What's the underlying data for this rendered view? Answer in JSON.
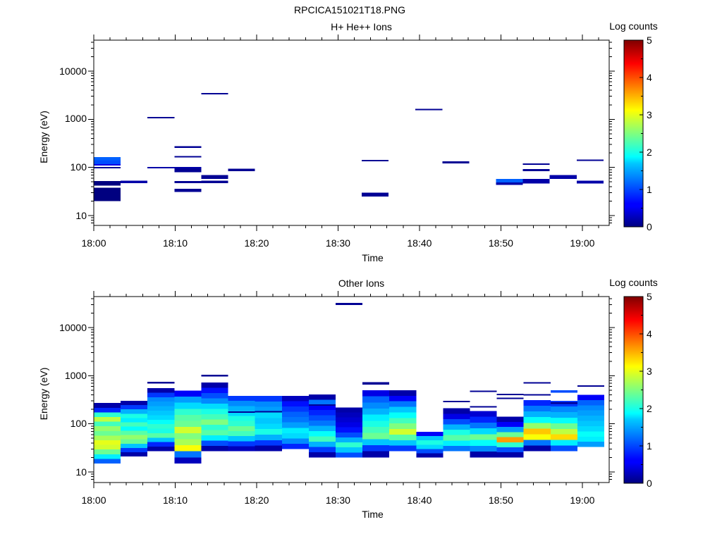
{
  "figure_title": "RPCICA151021T18.PNG",
  "chart_data": [
    {
      "type": "heatmap",
      "title": "H+ He++ Ions",
      "xlabel": "Time",
      "ylabel": "Energy (eV)",
      "x_ticks": [
        "18:00",
        "18:10",
        "18:20",
        "18:30",
        "18:40",
        "18:50",
        "19:00"
      ],
      "y_ticks": [
        "10",
        "100",
        "1000",
        "10000"
      ],
      "y_scale": "log",
      "ylim": [
        6,
        45000
      ],
      "xlim_minutes": [
        0,
        63.3
      ],
      "colorbar": {
        "label": "Log counts",
        "range": [
          0,
          5
        ],
        "ticks": [
          "0",
          "1",
          "2",
          "3",
          "4",
          "5"
        ]
      },
      "cells": [
        [
          0,
          3.3,
          20,
          33,
          0
        ],
        [
          0,
          3.3,
          33,
          38,
          0
        ],
        [
          0,
          3.3,
          42,
          52,
          0
        ],
        [
          0,
          3.3,
          95,
          103,
          0.1
        ],
        [
          0,
          3.3,
          112,
          118,
          0.5
        ],
        [
          0,
          3.3,
          118,
          140,
          1.0
        ],
        [
          0,
          3.3,
          140,
          165,
          1.1
        ],
        [
          3.3,
          6.6,
          47,
          53,
          0.2
        ],
        [
          6.6,
          9.9,
          98,
          103,
          0.2
        ],
        [
          6.6,
          9.9,
          1060,
          1120,
          0.1
        ],
        [
          9.9,
          13.2,
          31,
          36,
          0.1
        ],
        [
          9.9,
          13.2,
          47,
          52,
          0.1
        ],
        [
          9.9,
          13.2,
          80,
          97,
          0.1
        ],
        [
          9.9,
          13.2,
          97,
          103,
          0.2
        ],
        [
          9.9,
          13.2,
          168,
          172,
          0.1
        ],
        [
          9.9,
          13.2,
          255,
          275,
          0.1
        ],
        [
          13.2,
          16.5,
          47,
          53,
          0.1
        ],
        [
          13.2,
          16.5,
          58,
          70,
          0.1
        ],
        [
          13.2,
          16.5,
          3300,
          3500,
          0.1
        ],
        [
          16.5,
          19.8,
          84,
          94,
          0.1
        ],
        [
          32.9,
          36.2,
          25,
          30,
          0.1
        ],
        [
          32.9,
          36.2,
          137,
          144,
          0.1
        ],
        [
          39.5,
          42.8,
          1580,
          1650,
          0.1
        ],
        [
          42.8,
          46.1,
          122,
          134,
          0.1
        ],
        [
          49.4,
          52.7,
          43,
          49,
          0.2
        ],
        [
          49.4,
          52.7,
          49,
          58,
          1.1
        ],
        [
          52.7,
          56.0,
          46,
          58,
          0.2
        ],
        [
          52.7,
          56.0,
          83,
          93,
          0.1
        ],
        [
          52.7,
          56.0,
          114,
          121,
          0.1
        ],
        [
          56.0,
          59.3,
          58,
          70,
          0.2
        ],
        [
          59.3,
          62.6,
          46,
          53,
          0.2
        ],
        [
          59.3,
          62.6,
          137,
          145,
          0.1
        ]
      ]
    },
    {
      "type": "heatmap",
      "title": "Other Ions",
      "xlabel": "Time",
      "ylabel": "Energy (eV)",
      "x_ticks": [
        "18:00",
        "18:10",
        "18:20",
        "18:30",
        "18:40",
        "18:50",
        "19:00"
      ],
      "y_ticks": [
        "10",
        "100",
        "1000",
        "10000"
      ],
      "y_scale": "log",
      "ylim": [
        6,
        45000
      ],
      "xlim_minutes": [
        0,
        63.3
      ],
      "colorbar": {
        "label": "Log counts",
        "range": [
          0,
          5
        ],
        "ticks": [
          "0",
          "1",
          "2",
          "3",
          "4",
          "5"
        ]
      },
      "columns": [
        {
          "x": [
            0,
            3.3
          ],
          "lo": 15,
          "hi": 270,
          "colors": [
            1.1,
            1.8,
            2.4,
            2.9,
            3.0,
            2.7,
            2.4,
            2.6,
            2.2,
            2.8,
            2.1,
            0.8,
            0.2
          ]
        },
        {
          "x": [
            3.3,
            6.6
          ],
          "lo": 21,
          "hi": 300,
          "colors": [
            0.2,
            0.9,
            1.6,
            2.4,
            2.6,
            2.3,
            1.9,
            2.2,
            1.8,
            2.0,
            1.5,
            0.9,
            0.2
          ]
        },
        {
          "x": [
            6.6,
            9.9
          ],
          "lo": 27,
          "hi": 550,
          "colors": [
            0.2,
            0.8,
            1.6,
            2.3,
            2.0,
            2.1,
            1.9,
            1.7,
            1.6,
            1.5,
            1.4,
            1.3,
            0.9,
            0.2
          ]
        },
        {
          "x": [
            9.9,
            13.2
          ],
          "lo": 15,
          "hi": 490,
          "colors": [
            0.3,
            1.2,
            3.1,
            2.7,
            2.5,
            2.9,
            2.4,
            2.3,
            2.1,
            1.7,
            1.4,
            0.6
          ]
        },
        {
          "x": [
            13.2,
            16.5
          ],
          "lo": 27,
          "hi": 720,
          "colors": [
            0.2,
            1.0,
            1.8,
            2.3,
            2.1,
            2.5,
            2.2,
            2.0,
            1.7,
            1.3,
            1.0,
            0.7,
            0.2
          ]
        },
        {
          "x": [
            16.5,
            19.8
          ],
          "lo": 27,
          "hi": 380,
          "colors": [
            0.3,
            0.9,
            1.6,
            2.2,
            2.4,
            2.1,
            2.0,
            1.7,
            1.5,
            1.3,
            0.9
          ]
        },
        {
          "x": [
            19.8,
            23.1
          ],
          "lo": 27,
          "hi": 380,
          "colors": [
            0.2,
            0.9,
            1.5,
            2.0,
            1.7,
            1.6,
            1.7,
            1.4,
            1.3,
            0.9
          ]
        },
        {
          "x": [
            23.1,
            26.4
          ],
          "lo": 30,
          "hi": 380,
          "colors": [
            0.8,
            1.3,
            1.7,
            1.8,
            1.4,
            1.2,
            1.1,
            0.9,
            0.7,
            0.3
          ]
        },
        {
          "x": [
            26.4,
            29.7
          ],
          "lo": 20,
          "hi": 410,
          "colors": [
            0.2,
            0.9,
            1.5,
            2.2,
            1.9,
            1.5,
            1.2,
            1.0,
            0.8,
            0.6,
            1.2,
            0.2
          ]
        },
        {
          "x": [
            29.7,
            33.0
          ],
          "lo": 20,
          "hi": 220,
          "colors": [
            1.0,
            1.6,
            2.1,
            1.5,
            1.0,
            0.7,
            0.5,
            0.4,
            0.3,
            0.2
          ]
        },
        {
          "x": [
            33.0,
            36.3
          ],
          "lo": 20,
          "hi": 500,
          "colors": [
            0.2,
            0.9,
            1.6,
            2.4,
            2.2,
            2.0,
            1.8,
            1.5,
            1.3,
            1.1,
            0.5
          ]
        },
        {
          "x": [
            36.3,
            39.6
          ],
          "lo": 27,
          "hi": 500,
          "colors": [
            0.9,
            1.6,
            2.3,
            2.9,
            2.5,
            2.2,
            1.9,
            1.6,
            1.2,
            0.6,
            0.2
          ]
        },
        {
          "x": [
            39.6,
            42.9
          ],
          "lo": 20,
          "hi": 68,
          "colors": [
            0.2,
            1.0,
            1.7,
            2.0,
            1.6,
            0.6
          ]
        },
        {
          "x": [
            42.9,
            46.2
          ],
          "lo": 27,
          "hi": 210,
          "colors": [
            1.2,
            1.8,
            2.3,
            2.0,
            1.5,
            1.0,
            0.5,
            0.2
          ]
        },
        {
          "x": [
            46.2,
            49.5
          ],
          "lo": 20,
          "hi": 185,
          "colors": [
            0.2,
            1.3,
            1.9,
            2.4,
            1.7,
            1.2,
            0.8,
            0.4
          ]
        },
        {
          "x": [
            49.5,
            52.8
          ],
          "lo": 20,
          "hi": 140,
          "colors": [
            0.2,
            1.0,
            2.1,
            3.6,
            2.4,
            1.4,
            0.6,
            0.2
          ]
        },
        {
          "x": [
            52.8,
            56.1
          ],
          "lo": 27,
          "hi": 310,
          "colors": [
            0.2,
            1.2,
            3.1,
            3.4,
            2.6,
            1.9,
            1.5,
            1.2,
            0.8
          ]
        },
        {
          "x": [
            56.1,
            59.4
          ],
          "lo": 27,
          "hi": 300,
          "colors": [
            1.0,
            1.8,
            3.3,
            2.8,
            2.4,
            1.9,
            1.5,
            1.3,
            0.9
          ]
        },
        {
          "x": [
            59.4,
            62.7
          ],
          "lo": 33,
          "hi": 400,
          "colors": [
            1.4,
            1.8,
            1.9,
            1.7,
            1.6,
            1.5,
            1.4,
            1.3,
            1.1,
            0.6
          ]
        }
      ],
      "cells": [
        [
          29.7,
          33.0,
          29500,
          32500,
          0.1
        ],
        [
          6.6,
          9.9,
          690,
          750,
          0.1
        ],
        [
          13.2,
          16.5,
          960,
          1040,
          0.1
        ],
        [
          33.0,
          36.3,
          650,
          740,
          0.1
        ],
        [
          19.8,
          23.1,
          175,
          185,
          0.1
        ],
        [
          16.5,
          19.8,
          170,
          182,
          0.1
        ],
        [
          42.9,
          46.2,
          280,
          300,
          0.1
        ],
        [
          46.2,
          49.5,
          460,
          490,
          0.1
        ],
        [
          46.2,
          49.5,
          220,
          232,
          0.1
        ],
        [
          49.5,
          52.8,
          400,
          420,
          0.1
        ],
        [
          49.5,
          52.8,
          340,
          352,
          0.1
        ],
        [
          52.8,
          56.1,
          700,
          740,
          0.1
        ],
        [
          52.8,
          56.1,
          395,
          415,
          0.1
        ],
        [
          56.1,
          59.4,
          440,
          500,
          1.0
        ],
        [
          56.1,
          59.4,
          260,
          280,
          0.1
        ],
        [
          59.4,
          62.7,
          590,
          630,
          0.1
        ],
        [
          26.4,
          29.7,
          240,
          255,
          0.1
        ]
      ]
    }
  ]
}
